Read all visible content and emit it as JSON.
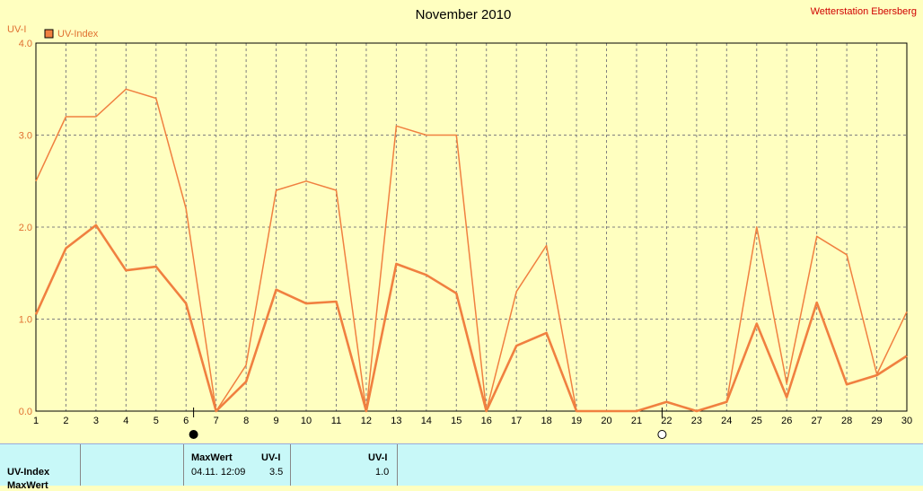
{
  "header": {
    "title": "November 2010",
    "station": "Wetterstation Ebersberg",
    "unit_label": "UV-I",
    "legend_label": "UV-Index"
  },
  "colors": {
    "background": "#ffffc0",
    "series": "#f08040",
    "grid": "#808080",
    "axis_text": "#e07030",
    "station_text": "#d00000",
    "panel_bg": "#c8f8f8"
  },
  "chart_data": {
    "type": "line",
    "title": "November 2010",
    "ylabel": "UV-I",
    "ylim": [
      0,
      4
    ],
    "yticks": [
      "0.0",
      "1.0",
      "2.0",
      "3.0",
      "4.0"
    ],
    "x": [
      1,
      2,
      3,
      4,
      5,
      6,
      7,
      8,
      9,
      10,
      11,
      12,
      13,
      14,
      15,
      16,
      17,
      18,
      19,
      20,
      21,
      22,
      23,
      24,
      25,
      26,
      27,
      28,
      29,
      30
    ],
    "xticks": [
      "1",
      "2",
      "3",
      "4",
      "5",
      "6",
      "7",
      "8",
      "9",
      "10",
      "11",
      "12",
      "13",
      "14",
      "15",
      "16",
      "17",
      "18",
      "19",
      "20",
      "21",
      "22",
      "23",
      "24",
      "25",
      "26",
      "27",
      "28",
      "29",
      "30"
    ],
    "grid": true,
    "legend": "top-left",
    "series": [
      {
        "name": "UV-Index",
        "line_style": "thick",
        "values": [
          1.05,
          1.77,
          2.02,
          1.53,
          1.57,
          1.17,
          0.0,
          0.32,
          1.32,
          1.17,
          1.19,
          0.0,
          1.6,
          1.48,
          1.28,
          0.0,
          0.71,
          0.85,
          0.0,
          0.0,
          0.0,
          0.1,
          0.0,
          0.1,
          0.95,
          0.15,
          1.18,
          0.29,
          0.39,
          0.6
        ]
      },
      {
        "line_style": "thin",
        "values": [
          2.5,
          3.2,
          3.2,
          3.5,
          3.4,
          2.2,
          0.0,
          0.5,
          2.4,
          2.5,
          2.4,
          0.0,
          3.1,
          3.0,
          3.0,
          0.0,
          1.3,
          1.8,
          0.0,
          0.0,
          0.0,
          0.1,
          0.0,
          0.1,
          2.0,
          0.3,
          1.9,
          1.7,
          0.4,
          1.08
        ]
      }
    ],
    "markers": [
      {
        "x": 6.25,
        "symbol": "new-moon"
      },
      {
        "x": 21.85,
        "symbol": "full-moon"
      }
    ]
  },
  "panel": {
    "row_label": "UV-Index",
    "row2_label": "MaxWert",
    "col_maxwert": "MaxWert",
    "col_uvi": "UV-I",
    "col_uvi2": "UV-I",
    "max_datetime": "04.11.  12:09",
    "max_value": "3.5",
    "mean_value": "1.0"
  }
}
